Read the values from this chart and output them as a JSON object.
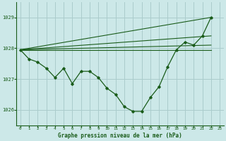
{
  "background_color": "#cce8e8",
  "grid_color": "#aacccc",
  "line_color": "#1a5c1a",
  "title": "Graphe pression niveau de la mer (hPa)",
  "xlim": [
    -0.5,
    23.5
  ],
  "ylim": [
    1025.5,
    1029.5
  ],
  "yticks": [
    1026,
    1027,
    1028,
    1029
  ],
  "xticks": [
    0,
    1,
    2,
    3,
    4,
    5,
    6,
    7,
    8,
    9,
    10,
    11,
    12,
    13,
    14,
    15,
    16,
    17,
    18,
    19,
    20,
    21,
    22,
    23
  ],
  "main_x": [
    0,
    1,
    2,
    3,
    4,
    5,
    6,
    7,
    8,
    9,
    10,
    11,
    12,
    13,
    14,
    15,
    16,
    17,
    18,
    19,
    20,
    21,
    22
  ],
  "main_y": [
    1027.95,
    1027.65,
    1027.55,
    1027.35,
    1027.05,
    1027.35,
    1026.85,
    1027.25,
    1027.25,
    1027.05,
    1026.7,
    1026.5,
    1026.1,
    1025.95,
    1025.95,
    1026.4,
    1026.75,
    1027.4,
    1027.95,
    1028.2,
    1028.1,
    1028.4,
    1029.0
  ],
  "diag_lines": [
    {
      "x": [
        0,
        22
      ],
      "y": [
        1027.95,
        1029.0
      ]
    },
    {
      "x": [
        0,
        22
      ],
      "y": [
        1027.95,
        1028.4
      ]
    },
    {
      "x": [
        0,
        22
      ],
      "y": [
        1027.95,
        1028.1
      ]
    },
    {
      "x": [
        0,
        22
      ],
      "y": [
        1027.95,
        1027.95
      ]
    }
  ]
}
